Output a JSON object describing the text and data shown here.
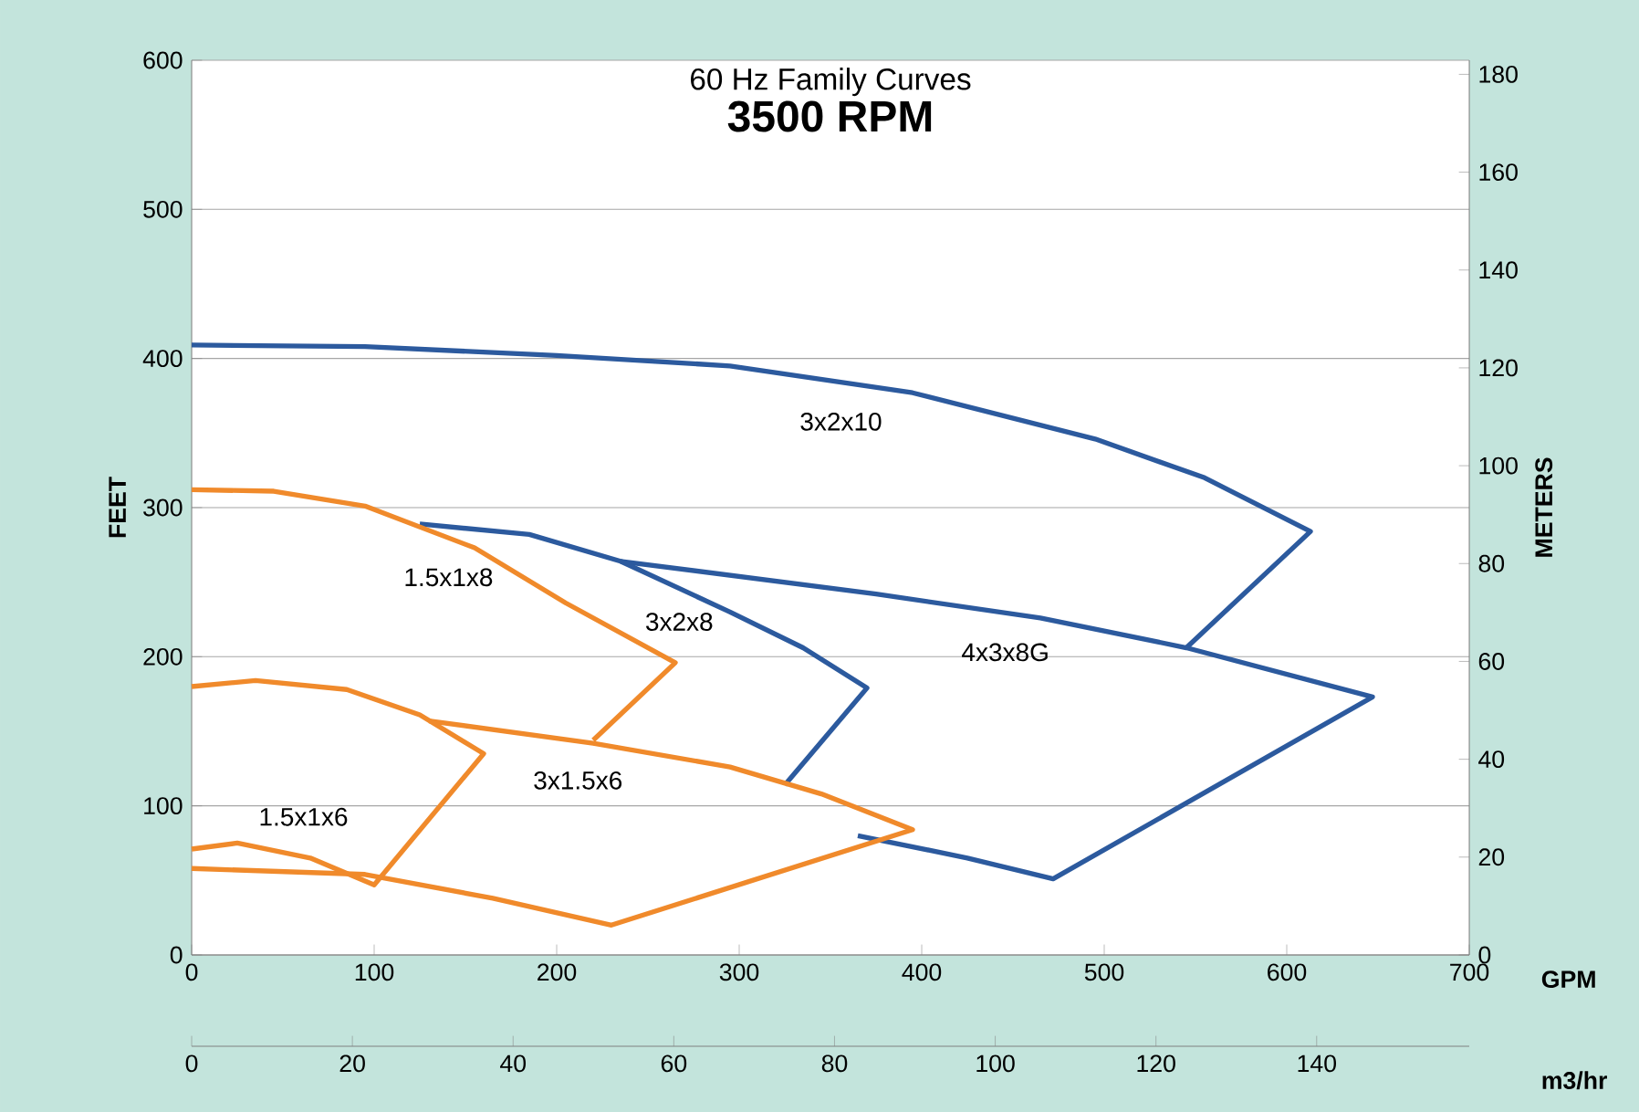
{
  "chart_data": {
    "type": "line",
    "title": "60 Hz Family Curves",
    "subtitle": "3500 RPM",
    "xlabel": "GPM",
    "x2label": "m3/hr",
    "ylabel": "FEET",
    "y2label": "METERS",
    "xlim": [
      0,
      700
    ],
    "xticks": [
      0,
      100,
      200,
      300,
      400,
      500,
      600,
      700
    ],
    "x2lim": [
      0,
      158.99
    ],
    "x2ticks": [
      0,
      20,
      40,
      60,
      80,
      100,
      120,
      140
    ],
    "ylim": [
      0,
      600
    ],
    "yticks": [
      0,
      100,
      200,
      300,
      400,
      500,
      600
    ],
    "y2lim": [
      0,
      182.88
    ],
    "y2ticks": [
      0,
      20,
      40,
      60,
      80,
      100,
      120,
      140,
      160,
      180
    ],
    "grid": "y",
    "series": [
      {
        "name": "3x2x10",
        "color": "#2c5a9e",
        "x": [
          0,
          95,
          200,
          295,
          395,
          495,
          555,
          613,
          545
        ],
        "values": [
          409,
          408,
          402,
          395,
          377,
          346,
          320,
          284,
          206
        ]
      },
      {
        "name": "4x3x8G",
        "color": "#2c5a9e",
        "x": [
          235,
          375,
          465,
          545,
          647,
          472,
          425,
          365
        ],
        "values": [
          264,
          242,
          226,
          206,
          173,
          51,
          65,
          80
        ]
      },
      {
        "name": "3x2x8",
        "color": "#2c5a9e",
        "x": [
          125,
          185,
          235,
          295,
          335,
          370,
          325
        ],
        "values": [
          289,
          282,
          264,
          230,
          206,
          179,
          114
        ]
      },
      {
        "name": "1.5x1x8",
        "color": "#f08a2b",
        "x": [
          0,
          45,
          95,
          155,
          205,
          265,
          220
        ],
        "values": [
          312,
          311,
          301,
          273,
          236,
          196,
          144
        ]
      },
      {
        "name": "3x1.5x6",
        "color": "#f08a2b",
        "x": [
          130,
          220,
          295,
          345,
          395,
          230,
          165,
          95,
          0
        ],
        "values": [
          157,
          142,
          126,
          108,
          84,
          20,
          38,
          54,
          58
        ]
      },
      {
        "name": "1.5x1x6",
        "color": "#f08a2b",
        "x": [
          0,
          35,
          85,
          125,
          160,
          100,
          65,
          25,
          0
        ],
        "values": [
          180,
          184,
          178,
          161,
          135,
          47,
          65,
          75,
          71
        ]
      }
    ]
  }
}
